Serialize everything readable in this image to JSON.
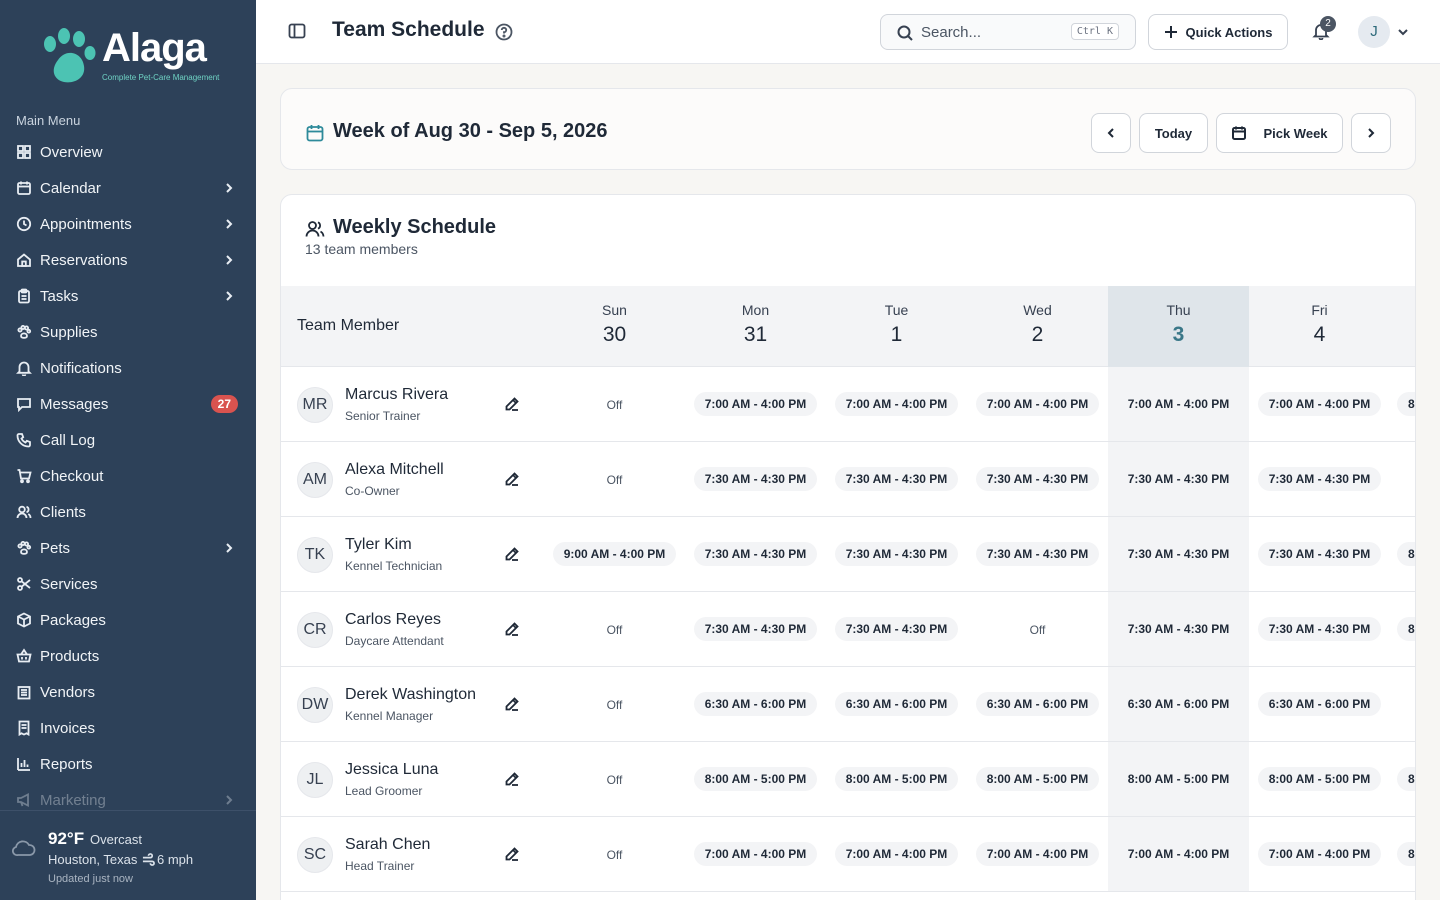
{
  "brand": {
    "name": "Alaga",
    "tagline": "Complete Pet-Care Management"
  },
  "sidebar": {
    "heading": "Main Menu",
    "items": [
      {
        "label": "Overview",
        "icon": "grid-icon",
        "chevron": false
      },
      {
        "label": "Calendar",
        "icon": "calendar-icon",
        "chevron": true
      },
      {
        "label": "Appointments",
        "icon": "clock-icon",
        "chevron": true
      },
      {
        "label": "Reservations",
        "icon": "home-icon",
        "chevron": true
      },
      {
        "label": "Tasks",
        "icon": "clipboard-icon",
        "chevron": true
      },
      {
        "label": "Supplies",
        "icon": "paw-icon",
        "chevron": false
      },
      {
        "label": "Notifications",
        "icon": "bell-icon",
        "chevron": false
      },
      {
        "label": "Messages",
        "icon": "message-icon",
        "chevron": false,
        "badge": "27"
      },
      {
        "label": "Call Log",
        "icon": "phone-icon",
        "chevron": false
      },
      {
        "label": "Checkout",
        "icon": "cart-icon",
        "chevron": false
      },
      {
        "label": "Clients",
        "icon": "users-icon",
        "chevron": false
      },
      {
        "label": "Pets",
        "icon": "paw-icon",
        "chevron": true
      },
      {
        "label": "Services",
        "icon": "scissors-icon",
        "chevron": false
      },
      {
        "label": "Packages",
        "icon": "package-icon",
        "chevron": false
      },
      {
        "label": "Products",
        "icon": "basket-icon",
        "chevron": false
      },
      {
        "label": "Vendors",
        "icon": "building-icon",
        "chevron": false
      },
      {
        "label": "Invoices",
        "icon": "receipt-icon",
        "chevron": false
      },
      {
        "label": "Reports",
        "icon": "chart-icon",
        "chevron": false
      },
      {
        "label": "Marketing",
        "icon": "megaphone-icon",
        "chevron": true
      }
    ]
  },
  "weather": {
    "temp": "92°F",
    "condition": "Overcast",
    "location": "Houston, Texas",
    "wind": "6 mph",
    "updated": "Updated just now"
  },
  "topbar": {
    "title": "Team Schedule",
    "search_placeholder": "Search...",
    "search_shortcut": "Ctrl K",
    "quick_actions": "Quick Actions",
    "notification_count": "2",
    "user_initial": "J"
  },
  "week": {
    "title": "Week of Aug 30 - Sep 5, 2026",
    "today_label": "Today",
    "pick_week_label": "Pick Week"
  },
  "schedule": {
    "title": "Weekly Schedule",
    "subtitle": "13 team members",
    "member_header": "Team Member",
    "days": [
      {
        "name": "Sun",
        "date": "30",
        "today": false
      },
      {
        "name": "Mon",
        "date": "31",
        "today": false
      },
      {
        "name": "Tue",
        "date": "1",
        "today": false
      },
      {
        "name": "Wed",
        "date": "2",
        "today": false
      },
      {
        "name": "Thu",
        "date": "3",
        "today": true
      },
      {
        "name": "Fri",
        "date": "4",
        "today": false
      }
    ],
    "members": [
      {
        "initials": "MR",
        "name": "Marcus Rivera",
        "role": "Senior Trainer",
        "shifts": [
          "Off",
          "7:00 AM - 4:00 PM",
          "7:00 AM - 4:00 PM",
          "7:00 AM - 4:00 PM",
          "7:00 AM - 4:00 PM",
          "7:00 AM - 4:00 PM"
        ],
        "sat_partial": "8"
      },
      {
        "initials": "AM",
        "name": "Alexa Mitchell",
        "role": "Co-Owner",
        "shifts": [
          "Off",
          "7:30 AM - 4:30 PM",
          "7:30 AM - 4:30 PM",
          "7:30 AM - 4:30 PM",
          "7:30 AM - 4:30 PM",
          "7:30 AM - 4:30 PM"
        ],
        "sat_partial": ""
      },
      {
        "initials": "TK",
        "name": "Tyler Kim",
        "role": "Kennel Technician",
        "shifts": [
          "9:00 AM - 4:00 PM",
          "7:30 AM - 4:30 PM",
          "7:30 AM - 4:30 PM",
          "7:30 AM - 4:30 PM",
          "7:30 AM - 4:30 PM",
          "7:30 AM - 4:30 PM"
        ],
        "sat_partial": "8"
      },
      {
        "initials": "CR",
        "name": "Carlos Reyes",
        "role": "Daycare Attendant",
        "shifts": [
          "Off",
          "7:30 AM - 4:30 PM",
          "7:30 AM - 4:30 PM",
          "Off",
          "7:30 AM - 4:30 PM",
          "7:30 AM - 4:30 PM"
        ],
        "sat_partial": "8"
      },
      {
        "initials": "DW",
        "name": "Derek Washington",
        "role": "Kennel Manager",
        "shifts": [
          "Off",
          "6:30 AM - 6:00 PM",
          "6:30 AM - 6:00 PM",
          "6:30 AM - 6:00 PM",
          "6:30 AM - 6:00 PM",
          "6:30 AM - 6:00 PM"
        ],
        "sat_partial": ""
      },
      {
        "initials": "JL",
        "name": "Jessica Luna",
        "role": "Lead Groomer",
        "shifts": [
          "Off",
          "8:00 AM - 5:00 PM",
          "8:00 AM - 5:00 PM",
          "8:00 AM - 5:00 PM",
          "8:00 AM - 5:00 PM",
          "8:00 AM - 5:00 PM"
        ],
        "sat_partial": "8"
      },
      {
        "initials": "SC",
        "name": "Sarah Chen",
        "role": "Head Trainer",
        "shifts": [
          "Off",
          "7:00 AM - 4:00 PM",
          "7:00 AM - 4:00 PM",
          "7:00 AM - 4:00 PM",
          "7:00 AM - 4:00 PM",
          "7:00 AM - 4:00 PM"
        ],
        "sat_partial": "8"
      }
    ]
  }
}
